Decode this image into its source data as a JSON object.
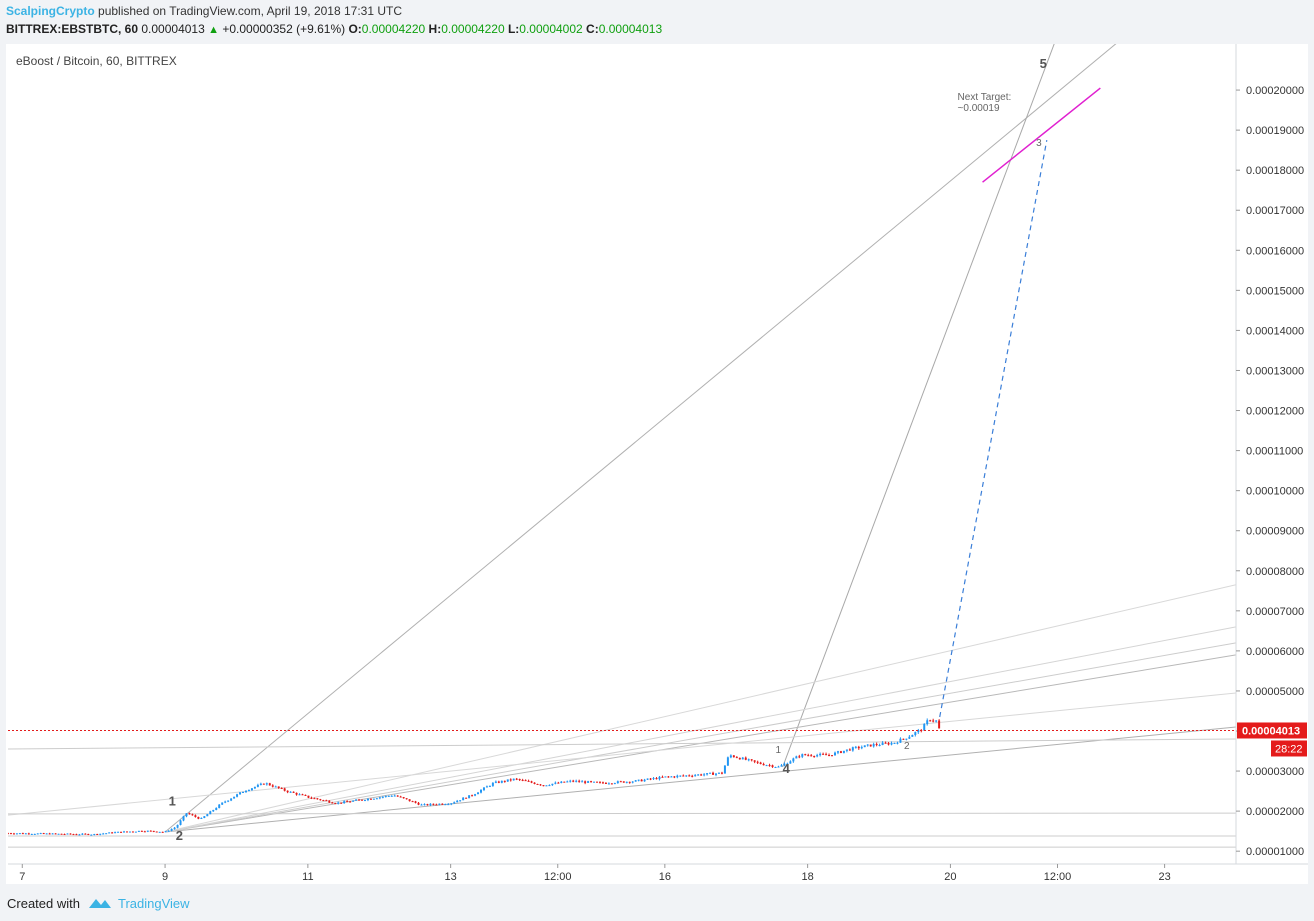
{
  "header": {
    "author": "ScalpingCrypto",
    "published_text": "published on TradingView.com, April 19, 2018 17:31 UTC",
    "symbol": "BITTREX:EBSTBTC, 60",
    "last_price": "0.00004013",
    "change": "+0.00000352 (+9.61%)",
    "ohlc": [
      {
        "key": "O:",
        "value": "0.00004220"
      },
      {
        "key": "H:",
        "value": "0.00004220"
      },
      {
        "key": "L:",
        "value": "0.00004002"
      },
      {
        "key": "C:",
        "value": "0.00004013"
      }
    ],
    "colors": {
      "author": "#3bb3e4",
      "positive": "#10a010"
    }
  },
  "chart_data": {
    "type": "candlestick",
    "title": "eBoost / Bitcoin, 60, BITTREX",
    "price_unit": "BTC",
    "ylim": [
      6.8e-06,
      0.0002115
    ],
    "y_ticks": [
      1e-05,
      2e-05,
      3e-05,
      4e-05,
      5e-05,
      6e-05,
      7e-05,
      8e-05,
      9e-05,
      0.0001,
      0.00011,
      0.00012,
      0.00013,
      0.00014,
      0.00015,
      0.00016,
      0.00017,
      0.00018,
      0.00019,
      0.0002
    ],
    "y_tick_labels": [
      "0.00001000",
      "0.00002000",
      "0.00003000",
      "0.00004000",
      "0.00005000",
      "0.00006000",
      "0.00007000",
      "0.00008000",
      "0.00009000",
      "0.00010000",
      "0.00011000",
      "0.00012000",
      "0.00013000",
      "0.00014000",
      "0.00015000",
      "0.00016000",
      "0.00017000",
      "0.00018000",
      "0.00019000",
      "0.00020000"
    ],
    "xlim": [
      6.8,
      24.0
    ],
    "x_ticks": [
      {
        "t": 7,
        "label": "7"
      },
      {
        "t": 9,
        "label": "9"
      },
      {
        "t": 11,
        "label": "11"
      },
      {
        "t": 13,
        "label": "13"
      },
      {
        "t": 14.5,
        "label": "12:00"
      },
      {
        "t": 16,
        "label": "16"
      },
      {
        "t": 18,
        "label": "18"
      },
      {
        "t": 20,
        "label": "20"
      },
      {
        "t": 21.5,
        "label": "12:00"
      },
      {
        "t": 23,
        "label": "23"
      }
    ],
    "last_price": {
      "value": 4.013e-05,
      "label": "0.00004013",
      "countdown": "28:22",
      "color": "#e41b1b"
    },
    "price_path": [
      [
        6.8,
        1.45e-05
      ],
      [
        7.5,
        1.43e-05
      ],
      [
        8.0,
        1.42e-05
      ],
      [
        8.3,
        1.47e-05
      ],
      [
        8.7,
        1.51e-05
      ],
      [
        9.0,
        1.48e-05
      ],
      [
        9.15,
        1.6e-05
      ],
      [
        9.3,
        1.95e-05
      ],
      [
        9.5,
        1.8e-05
      ],
      [
        9.8,
        2.2e-05
      ],
      [
        10.1,
        2.5e-05
      ],
      [
        10.4,
        2.7e-05
      ],
      [
        10.7,
        2.5e-05
      ],
      [
        11.0,
        2.35e-05
      ],
      [
        11.4,
        2.2e-05
      ],
      [
        11.9,
        2.32e-05
      ],
      [
        12.2,
        2.4e-05
      ],
      [
        12.6,
        2.15e-05
      ],
      [
        13.0,
        2.2e-05
      ],
      [
        13.3,
        2.4e-05
      ],
      [
        13.6,
        2.7e-05
      ],
      [
        13.9,
        2.8e-05
      ],
      [
        14.3,
        2.65e-05
      ],
      [
        14.7,
        2.75e-05
      ],
      [
        15.1,
        2.7e-05
      ],
      [
        15.6,
        2.75e-05
      ],
      [
        16.0,
        2.85e-05
      ],
      [
        16.4,
        2.9e-05
      ],
      [
        16.8,
        2.95e-05
      ],
      [
        16.9,
        3.4e-05
      ],
      [
        17.3,
        3.2e-05
      ],
      [
        17.6,
        3.1e-05
      ],
      [
        17.9,
        3.4e-05
      ],
      [
        18.3,
        3.4e-05
      ],
      [
        18.6,
        3.55e-05
      ],
      [
        18.9,
        3.65e-05
      ],
      [
        19.2,
        3.7e-05
      ],
      [
        19.4,
        3.85e-05
      ],
      [
        19.6,
        4.05e-05
      ],
      [
        19.7,
        4.3e-05
      ],
      [
        19.8,
        4.25e-05
      ],
      [
        19.85,
        4.013e-05
      ]
    ],
    "annotations": [
      {
        "text": "1",
        "t": 9.05,
        "v": 2.14e-05
      },
      {
        "text": "2",
        "t": 9.15,
        "v": 1.28e-05
      },
      {
        "text": "4",
        "t": 17.65,
        "v": 2.95e-05
      },
      {
        "text": "1",
        "t": 17.55,
        "v": 3.45e-05
      },
      {
        "text": "2",
        "t": 19.35,
        "v": 3.55e-05
      },
      {
        "text": "5",
        "t": 21.25,
        "v": 0.0002055
      },
      {
        "text": "3",
        "t": 21.2,
        "v": 0.000186
      },
      {
        "text": "Next Target:",
        "t": 20.1,
        "v": 0.0001975
      },
      {
        "text": "~0.00019",
        "t": 20.1,
        "v": 0.0001948
      }
    ],
    "trend_lines": [
      {
        "points": [
          [
            9.0,
            1.48e-05
          ],
          [
            21.4,
            0.000198
          ]
        ],
        "color": "#b0b0b0",
        "extend": true
      },
      {
        "points": [
          [
            17.65,
            3.1e-05
          ],
          [
            21.0,
            0.00019
          ]
        ],
        "color": "#a8a8a8",
        "extend": true
      },
      {
        "points": [
          [
            9.0,
            1.48e-05
          ],
          [
            24.0,
            4.1e-05
          ]
        ],
        "color": "#b0b0b0",
        "extend": false
      },
      {
        "points": [
          [
            9.0,
            1.48e-05
          ],
          [
            24.0,
            5.9e-05
          ]
        ],
        "color": "#b8b8b8",
        "extend": false
      },
      {
        "points": [
          [
            9.0,
            1.48e-05
          ],
          [
            24.0,
            6.2e-05
          ]
        ],
        "color": "#cccccc",
        "extend": false
      },
      {
        "points": [
          [
            9.0,
            1.48e-05
          ],
          [
            24.0,
            6.6e-05
          ]
        ],
        "color": "#d4d4d4",
        "extend": false
      },
      {
        "points": [
          [
            9.0,
            1.48e-05
          ],
          [
            24.0,
            7.65e-05
          ]
        ],
        "color": "#d8d8d8",
        "extend": false
      },
      {
        "points": [
          [
            6.8,
            3.55e-05
          ],
          [
            24.0,
            3.8e-05
          ]
        ],
        "color": "#cccccc",
        "extend": false
      },
      {
        "points": [
          [
            6.8,
            1.9e-05
          ],
          [
            24.0,
            4.95e-05
          ]
        ],
        "color": "#d8d8d8",
        "extend": false
      },
      {
        "points": [
          [
            6.8,
            1.93e-05
          ],
          [
            24.0,
            1.95e-05
          ]
        ],
        "color": "#cccccc",
        "extend": false
      },
      {
        "points": [
          [
            6.8,
            1.38e-05
          ],
          [
            24.0,
            1.38e-05
          ]
        ],
        "color": "#cccccc",
        "extend": false
      },
      {
        "points": [
          [
            6.8,
            1.1e-05
          ],
          [
            24.0,
            1.1e-05
          ]
        ],
        "color": "#cccccc",
        "extend": false
      }
    ],
    "projection": {
      "points": [
        [
          19.85,
          4.35e-05
        ],
        [
          21.35,
          0.0001875
        ]
      ],
      "color": "#3a7ed8",
      "style": "dashed"
    },
    "target_line": {
      "points": [
        [
          20.45,
          0.000177
        ],
        [
          22.1,
          0.0002005
        ]
      ],
      "color": "#e020d0"
    },
    "candle_colors": {
      "up": "#2196f3",
      "down": "#e41b1b"
    }
  },
  "footer": {
    "created_with": "Created with",
    "brand": "TradingView",
    "brand_color": "#3bb3e4"
  }
}
